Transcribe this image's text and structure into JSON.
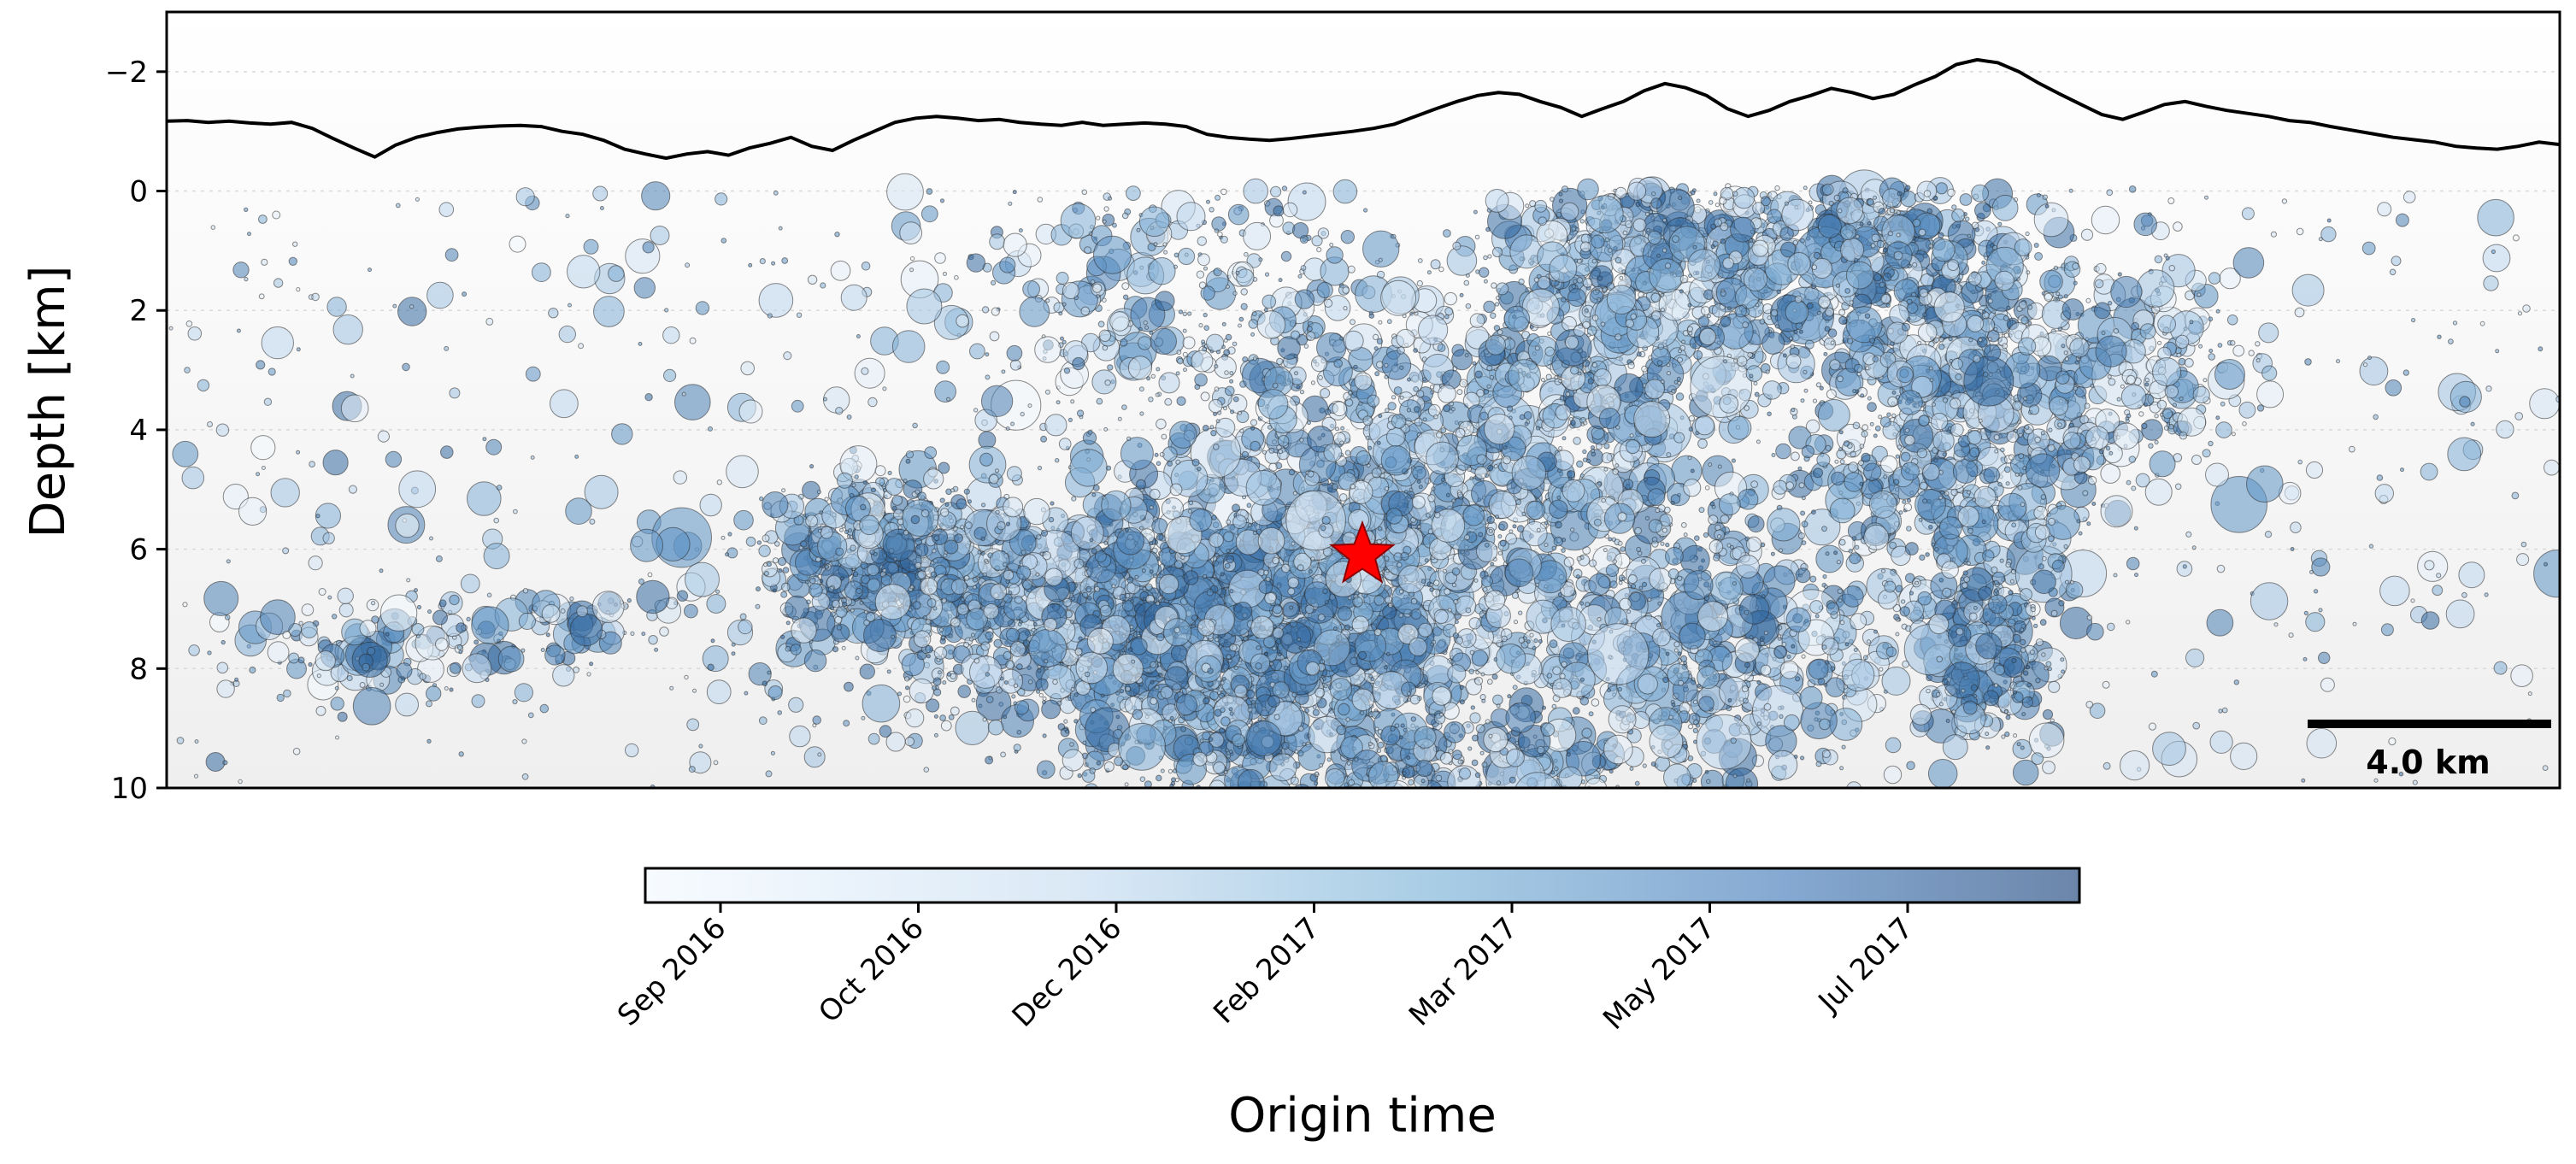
{
  "chart_data": {
    "type": "scatter",
    "ylabel": "Depth [km]",
    "ylim": [
      10,
      -3
    ],
    "yticks": [
      -2,
      0,
      2,
      4,
      6,
      8,
      10
    ],
    "ytick_labels": [
      "−2",
      "0",
      "2",
      "4",
      "6",
      "8",
      "10"
    ],
    "grid": true,
    "topography_depth_km": [
      -1.17,
      -1.18,
      -1.15,
      -1.17,
      -1.14,
      -1.12,
      -1.15,
      -1.05,
      -0.88,
      -0.72,
      -0.57,
      -0.77,
      -0.9,
      -0.98,
      -1.04,
      -1.07,
      -1.09,
      -1.1,
      -1.08,
      -1.0,
      -0.95,
      -0.85,
      -0.7,
      -0.62,
      -0.55,
      -0.62,
      -0.66,
      -0.6,
      -0.72,
      -0.8,
      -0.9,
      -0.75,
      -0.68,
      -0.85,
      -1.0,
      -1.15,
      -1.22,
      -1.25,
      -1.22,
      -1.18,
      -1.2,
      -1.15,
      -1.12,
      -1.1,
      -1.15,
      -1.1,
      -1.12,
      -1.14,
      -1.12,
      -1.08,
      -0.95,
      -0.9,
      -0.87,
      -0.85,
      -0.88,
      -0.92,
      -0.96,
      -1.0,
      -1.05,
      -1.12,
      -1.25,
      -1.38,
      -1.5,
      -1.6,
      -1.65,
      -1.62,
      -1.5,
      -1.4,
      -1.25,
      -1.38,
      -1.5,
      -1.68,
      -1.8,
      -1.73,
      -1.6,
      -1.38,
      -1.25,
      -1.35,
      -1.5,
      -1.6,
      -1.72,
      -1.65,
      -1.55,
      -1.62,
      -1.78,
      -1.92,
      -2.12,
      -2.2,
      -2.15,
      -2.0,
      -1.8,
      -1.62,
      -1.45,
      -1.28,
      -1.2,
      -1.32,
      -1.45,
      -1.5,
      -1.42,
      -1.35,
      -1.3,
      -1.25,
      -1.18,
      -1.15,
      -1.08,
      -1.02,
      -0.96,
      -0.9,
      -0.86,
      -0.82,
      -0.75,
      -0.72,
      -0.7,
      -0.75,
      -0.82,
      -0.78
    ],
    "hypocenter": {
      "marker": "star",
      "color": "#ff0000",
      "depth_km": 6.1
    },
    "events": {
      "count": 9000,
      "marker": "circle",
      "cmap": "Blues",
      "note": "Dense cloud of circles sized by magnitude and colored by origin time (Sep 2016 - Aug 2017)"
    },
    "colorbar": {
      "label": "Origin time",
      "ticks": [
        "Sep 2016",
        "Oct 2016",
        "Dec 2016",
        "Feb 2017",
        "Mar 2017",
        "May 2017",
        "Jul 2017"
      ]
    },
    "scalebar": {
      "label": "4.0 km",
      "length_km": 4.0
    }
  }
}
